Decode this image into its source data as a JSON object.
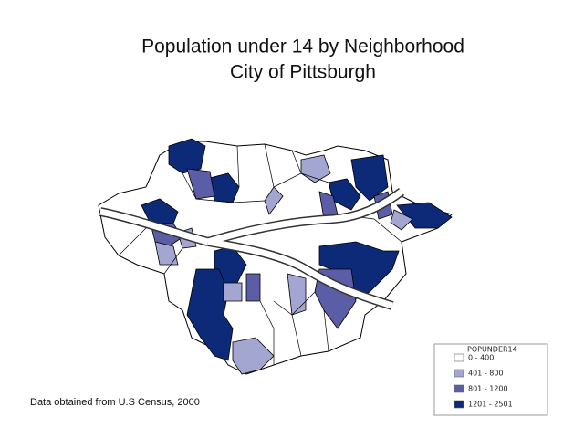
{
  "title": {
    "line1": "Population under 14 by Neighborhood",
    "line2": "City of Pittsburgh"
  },
  "legend": {
    "title": "POPUNDER14",
    "entries": [
      "0 - 400",
      "401 - 800",
      "801 - 1200",
      "1201 - 2501"
    ]
  },
  "note": "Data obtained from U.S Census, 2000"
}
